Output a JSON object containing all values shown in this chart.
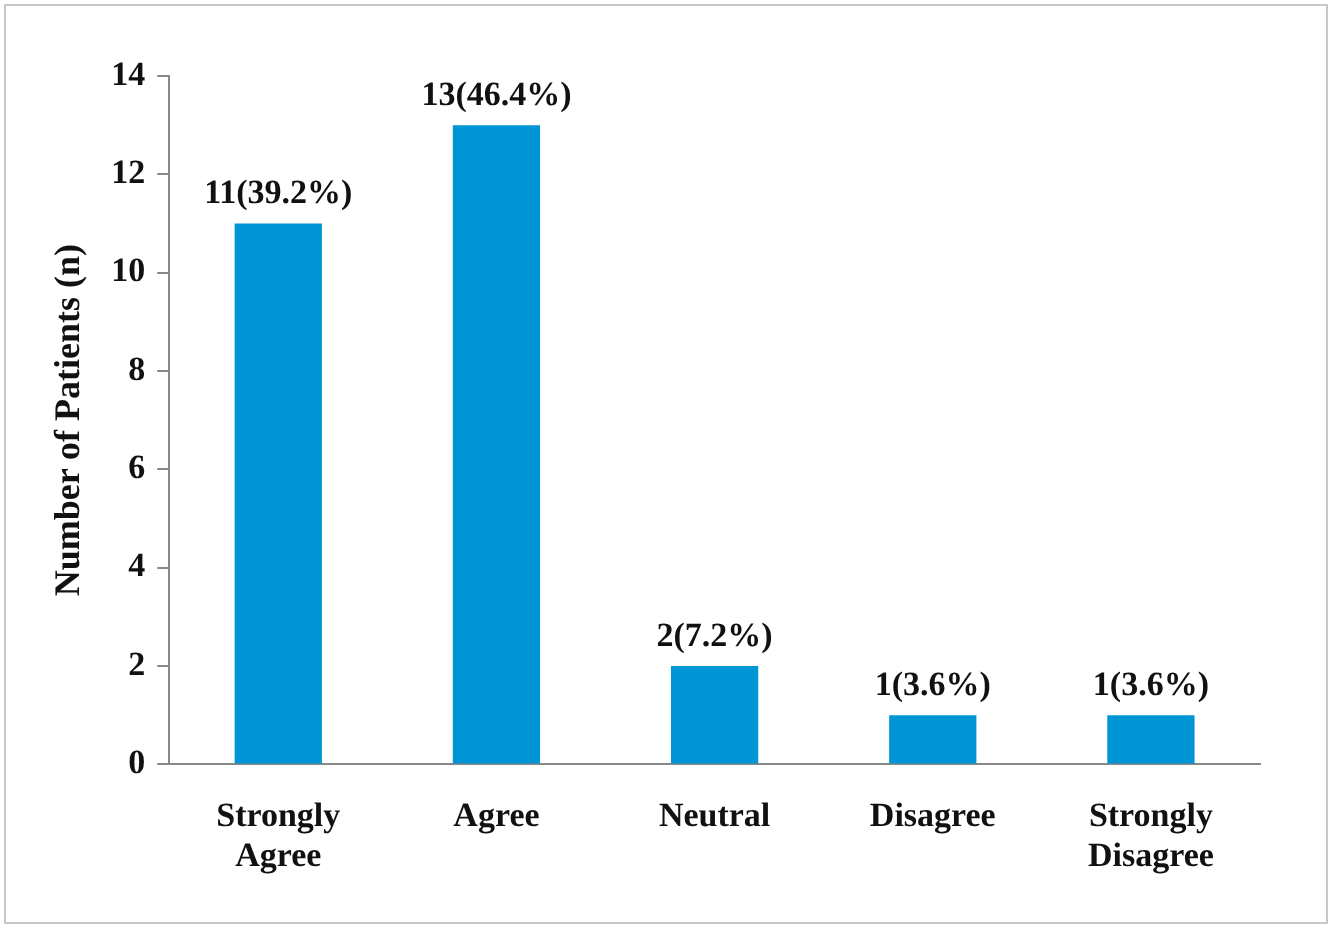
{
  "chart_data": {
    "type": "bar",
    "ylabel": "Number of Patients (n)",
    "categories": [
      "Strongly Agree",
      "Agree",
      "Neutral",
      "Disagree",
      "Strongly Disagree"
    ],
    "values": [
      11,
      13,
      2,
      1,
      1
    ],
    "value_labels": [
      "11(39.2%)",
      "13(46.4%)",
      "2(7.2%)",
      "1(3.6%)",
      "1(3.6%)"
    ],
    "color": "#0096d6",
    "ylim": [
      0,
      14
    ],
    "yticks": [
      0,
      2,
      4,
      6,
      8,
      10,
      12,
      14
    ],
    "grid": false,
    "legend": false
  }
}
